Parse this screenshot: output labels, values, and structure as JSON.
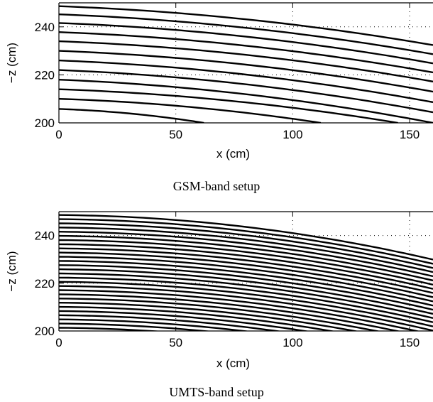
{
  "chart_data": [
    {
      "type": "line",
      "caption": "GSM-band setup",
      "xlabel": "x (cm)",
      "ylabel": "−z (cm)",
      "xlim": [
        0,
        160
      ],
      "ylim": [
        200,
        250
      ],
      "xticks": [
        0,
        50,
        100,
        150
      ],
      "yticks": [
        200,
        220,
        240
      ],
      "grid": true,
      "line_color": "#000000",
      "curve_count": 12,
      "series": [
        {
          "x": [
            0,
            160
          ],
          "y_start": 248.6,
          "y_end": 232.4
        },
        {
          "x": [
            0,
            160
          ],
          "y_start": 245.2,
          "y_end": 228.6
        },
        {
          "x": [
            0,
            160
          ],
          "y_start": 241.6,
          "y_end": 224.8
        },
        {
          "x": [
            0,
            160
          ],
          "y_start": 237.8,
          "y_end": 221.0
        },
        {
          "x": [
            0,
            160
          ],
          "y_start": 234.0,
          "y_end": 217.2
        },
        {
          "x": [
            0,
            160
          ],
          "y_start": 230.0,
          "y_end": 213.0
        },
        {
          "x": [
            0,
            160
          ],
          "y_start": 226.0,
          "y_end": 208.6
        },
        {
          "x": [
            0,
            160
          ],
          "y_start": 222.0,
          "y_end": 204.4
        },
        {
          "x": [
            0,
            160
          ],
          "y_start": 218.0,
          "y_end": 200.0
        },
        {
          "x": [
            0,
            145
          ],
          "y_start": 214.0,
          "y_end": 200.0
        },
        {
          "x": [
            0,
            112
          ],
          "y_start": 210.0,
          "y_end": 200.0
        },
        {
          "x": [
            0,
            62
          ],
          "y_start": 205.8,
          "y_end": 200.0
        }
      ]
    },
    {
      "type": "line",
      "caption": "UMTS-band setup",
      "xlabel": "x (cm)",
      "ylabel": "−z (cm)",
      "xlim": [
        0,
        160
      ],
      "ylim": [
        200,
        250
      ],
      "xticks": [
        0,
        50,
        100,
        150
      ],
      "yticks": [
        200,
        220,
        240
      ],
      "grid": true,
      "line_color": "#000000",
      "curve_count": 28
    }
  ]
}
